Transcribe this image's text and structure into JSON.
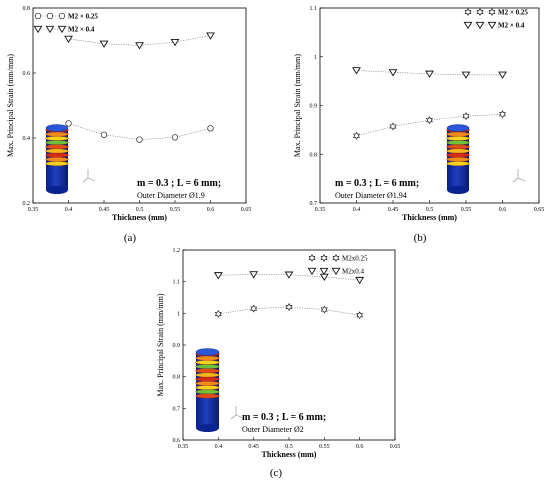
{
  "chart_data": [
    {
      "type": "line",
      "panel_label": "(a)",
      "xlabel": "Thickness (mm)",
      "ylabel": "Max. Principal Strain (mm/mm)",
      "xlim": [
        0.35,
        0.65
      ],
      "ylim": [
        0.2,
        0.8
      ],
      "xticks": [
        "0.35",
        "0.4",
        "0.45",
        "0.5",
        "0.55",
        "0.6",
        "0.65"
      ],
      "yticks": [
        "0.2",
        "0.4",
        "0.6",
        "0.8"
      ],
      "x": [
        0.4,
        0.45,
        0.5,
        0.55,
        0.6
      ],
      "series": [
        {
          "name": "M2 × 0.25",
          "marker": "circle",
          "values": [
            0.445,
            0.41,
            0.395,
            0.402,
            0.43
          ]
        },
        {
          "name": "M2 × 0.4",
          "marker": "triangle-down",
          "values": [
            0.705,
            0.69,
            0.685,
            0.695,
            0.715
          ]
        }
      ],
      "annotation": "m = 0.3 ; L = 6 mm;",
      "subannotation": "Outer Diameter Ø1.9",
      "legend_bold": true
    },
    {
      "type": "line",
      "panel_label": "(b)",
      "xlabel": "Thickness (mm)",
      "ylabel": "Max. Principal Strain (mm/mm)",
      "xlim": [
        0.35,
        0.65
      ],
      "ylim": [
        0.7,
        1.1
      ],
      "xticks": [
        "0.35",
        "0.4",
        "0.45",
        "0.5",
        "0.55",
        "0.6",
        "0.65"
      ],
      "yticks": [
        "0.7",
        "0.8",
        "0.9",
        "1",
        "1.1"
      ],
      "x": [
        0.4,
        0.45,
        0.5,
        0.55,
        0.6
      ],
      "series": [
        {
          "name": "M2 × 0.25",
          "marker": "star",
          "values": [
            0.838,
            0.857,
            0.87,
            0.878,
            0.882
          ]
        },
        {
          "name": "M2 × 0.4",
          "marker": "triangle-down",
          "values": [
            0.972,
            0.968,
            0.965,
            0.963,
            0.963
          ]
        }
      ],
      "annotation": "m = 0.3 ; L = 6 mm;",
      "subannotation": "Outer Diameter Ø1.94",
      "legend_bold": true
    },
    {
      "type": "line",
      "panel_label": "(c)",
      "xlabel": "Thickness (mm)",
      "ylabel": "Max. Principal Strain (mm/mm)",
      "xlim": [
        0.35,
        0.65
      ],
      "ylim": [
        0.6,
        1.2
      ],
      "xticks": [
        "0.35",
        "0.4",
        "0.45",
        "0.5",
        "0.55",
        "0.6",
        "0.65"
      ],
      "yticks": [
        "0.6",
        "0.7",
        "0.8",
        "0.9",
        "1",
        "1.1",
        "1.2"
      ],
      "x": [
        0.4,
        0.45,
        0.5,
        0.55,
        0.6
      ],
      "series": [
        {
          "name": "M2x0.25",
          "marker": "star",
          "values": [
            0.998,
            1.015,
            1.02,
            1.012,
            0.994
          ]
        },
        {
          "name": "M2x0.4",
          "marker": "triangle-down",
          "values": [
            1.12,
            1.123,
            1.122,
            1.115,
            1.105
          ]
        }
      ],
      "annotation": "m = 0.3 ; L = 6 mm;",
      "subannotation": "Outer Diameter Ø2",
      "legend_bold": false
    }
  ],
  "colors": {
    "marker_stroke": "#222222",
    "line": "#777777",
    "model_low": "#1f3fbf",
    "model_high": "#d62a1a"
  }
}
